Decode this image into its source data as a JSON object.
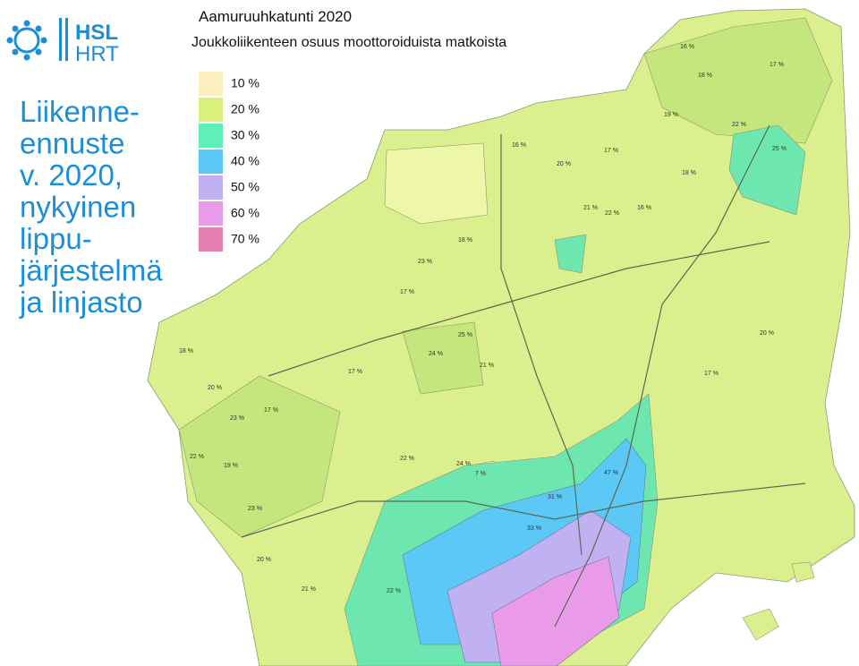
{
  "logo": {
    "line1": "HSL",
    "line2": "HRT"
  },
  "heading": [
    "Liikenne-",
    "ennuste",
    "v. 2020,",
    "nykyinen",
    "lippu-",
    "järjestelmä",
    "ja linjasto"
  ],
  "map": {
    "title": "Aamuruuhkatunti 2020",
    "subtitle": "Joukkoliikenteen osuus moottoroiduista matkoista",
    "legend": [
      {
        "label": "10 %",
        "color": "#fdf0c0"
      },
      {
        "label": "20 %",
        "color": "#d9f07a"
      },
      {
        "label": "30 %",
        "color": "#5ef0b8"
      },
      {
        "label": "40 %",
        "color": "#5cc8f6"
      },
      {
        "label": "50 %",
        "color": "#c0b2f2"
      },
      {
        "label": "60 %",
        "color": "#e99be9"
      },
      {
        "label": "70 %",
        "color": "#e87fb2"
      }
    ],
    "zone_labels": [
      "16 %",
      "17 %",
      "18 %",
      "19 %",
      "22 %",
      "25 %",
      "18 %",
      "23 %",
      "17 %",
      "21 %",
      "22 %",
      "16 %",
      "24 %",
      "25 %",
      "21 %",
      "18 %",
      "17 %",
      "20 %",
      "17 %",
      "23 %",
      "22 %",
      "19 %",
      "23 %",
      "20 %",
      "21 %",
      "22 %",
      "24 %",
      "7 %",
      "17 %",
      "20 %",
      "18 %",
      "17 %",
      "20 %",
      "16 %",
      "22 %",
      "31 %",
      "47 %",
      "33 %"
    ]
  }
}
